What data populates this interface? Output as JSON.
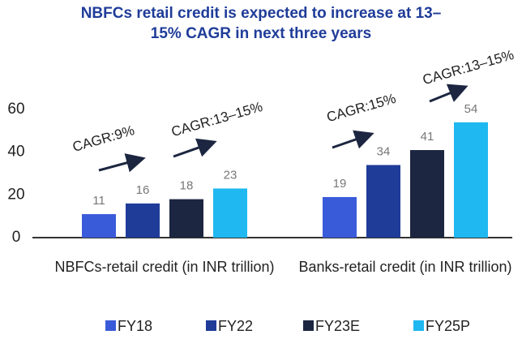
{
  "chart_data": {
    "type": "bar",
    "title": "NBFCs retail credit is expected to increase at 13–15% CAGR in next three years",
    "categories": [
      "NBFCs-retail credit (in INR trillion)",
      "Banks-retail credit (in INR trillion)"
    ],
    "series": [
      {
        "name": "FY18",
        "color": "#3a5bd9",
        "values": [
          11,
          19
        ]
      },
      {
        "name": "FY22",
        "color": "#1f3c99",
        "values": [
          16,
          34
        ]
      },
      {
        "name": "FY23E",
        "color": "#1c2640",
        "values": [
          18,
          41
        ]
      },
      {
        "name": "FY25P",
        "color": "#1fb8f0",
        "values": [
          23,
          54
        ]
      }
    ],
    "annotations": [
      "CAGR:9%",
      "CAGR:13–15%",
      "CAGR:15%",
      "CAGR:13–15%"
    ],
    "ylim": [
      0,
      60
    ],
    "yticks": [
      0,
      20,
      40,
      60
    ],
    "grid": false,
    "legend": "bottom"
  }
}
